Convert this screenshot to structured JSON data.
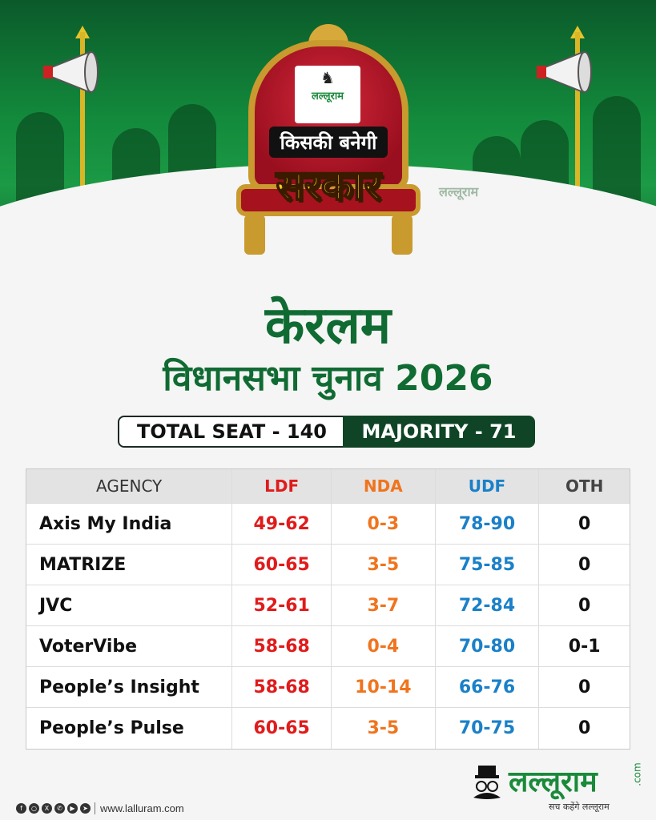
{
  "header": {
    "logo_small": "लल्लूराम",
    "banner_top": "किसकी बनेगी",
    "banner_main": "सरकार",
    "watermark": "लल्लूराम"
  },
  "title": {
    "state": "केरलम",
    "subtitle": "विधानसभा चुनाव 2026"
  },
  "seats": {
    "total": "TOTAL SEAT - 140",
    "majority": "MAJORITY - 71"
  },
  "table": {
    "headers": [
      "AGENCY",
      "LDF",
      "NDA",
      "UDF",
      "OTH"
    ],
    "rows": [
      [
        "Axis My India",
        "49-62",
        "0-3",
        "78-90",
        "0"
      ],
      [
        "MATRIZE",
        "60-65",
        "3-5",
        "75-85",
        "0"
      ],
      [
        "JVC",
        "52-61",
        "3-7",
        "72-84",
        "0"
      ],
      [
        "VoterVibe",
        "58-68",
        "0-4",
        "70-80",
        "0-1"
      ],
      [
        "People’s Insight",
        "58-68",
        "10-14",
        "66-76",
        "0"
      ],
      [
        "People’s Pulse",
        "60-65",
        "3-5",
        "70-75",
        "0"
      ]
    ]
  },
  "colors": {
    "ldf": "#e01b1b",
    "nda": "#f0741d",
    "udf": "#1a80c8",
    "brand_green": "#106b33"
  },
  "footer": {
    "socials": [
      "facebook-icon",
      "instagram-icon",
      "x-icon",
      "whatsapp-icon",
      "youtube-icon",
      "telegram-icon"
    ],
    "url": "www.lalluram.com",
    "brand_name": "लल्लूराम",
    "brand_suffix": ".com",
    "brand_tagline": "सच कहेंगे लल्लूराम"
  }
}
